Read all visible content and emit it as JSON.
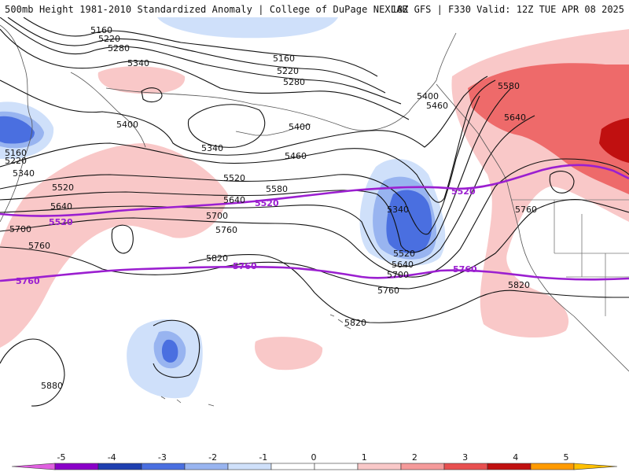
{
  "header": {
    "title": "500mb Height 1981-2010 Standardized Anomaly | College of DuPage NEXLAB",
    "valid": "18Z GFS | F330 Valid: 12Z TUE APR 08 2025"
  },
  "contour_labels": {
    "c5160a": "5160",
    "c5160b": "5160",
    "c5160c": "5160",
    "c5220a": "5220",
    "c5220b": "5220",
    "c5220c": "5220",
    "c5280a": "5280",
    "c5280b": "5280",
    "c5340a": "5340",
    "c5340b": "5340",
    "c5340c": "5340",
    "c5340d": "5340",
    "c5400a": "5400",
    "c5400b": "5400",
    "c5400c": "5400",
    "c5460a": "5460",
    "c5460b": "5460",
    "c5520a": "5520",
    "c5520b": "5520",
    "c5520c": "5520",
    "c5580a": "5580",
    "c5580b": "5580",
    "c5640a": "5640",
    "c5640b": "5640",
    "c5640c": "5640",
    "c5640d": "5640",
    "c5700a": "5700",
    "c5700b": "5700",
    "c5700c": "5700",
    "c5760a": "5760",
    "c5760b": "5760",
    "c5760c": "5760",
    "c5760d": "5760",
    "c5820a": "5820",
    "c5820b": "5820",
    "c5820c": "5820",
    "c5880a": "5880"
  },
  "highlight_labels": {
    "p5520a": "5520",
    "p5520b": "5520",
    "p5520c": "5520",
    "p5760a": "5760",
    "p5760b": "5760",
    "p5760c": "5760"
  },
  "colorbar": {
    "ticks": [
      "-5",
      "-4",
      "-3",
      "-2",
      "-1",
      "0",
      "1",
      "2",
      "3",
      "4",
      "5"
    ],
    "colors": [
      "#e060e0",
      "#8a00c8",
      "#1e3fb0",
      "#4a6fe0",
      "#98b4f0",
      "#cfe0fa",
      "#ffffff",
      "#ffffff",
      "#f9c8c8",
      "#f59a9a",
      "#e85050",
      "#c01010",
      "#ff9a00",
      "#ffc000"
    ]
  },
  "colors": {
    "neg_light": "#cfe0fa",
    "neg_mid": "#98b4f0",
    "neg_strong": "#4a6fe0",
    "pos_light": "#f9c8c8",
    "pos_mid": "#ee6a6a",
    "pos_strong": "#c01010",
    "highlight": "#9b1fd0"
  }
}
